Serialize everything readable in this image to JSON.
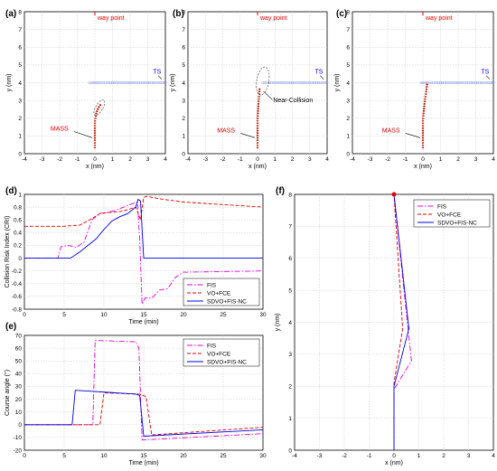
{
  "colors": {
    "fis": "#e000e0",
    "vo_fce": "#e00000",
    "sdvo": "#0000e0",
    "ts": "#0000e0",
    "mass": "#e00000",
    "waypoint": "#e00000",
    "grid": "#c8c8c8",
    "ts_track": "#9aa8e8"
  },
  "chart_data": [
    {
      "panel": "(a)",
      "type": "scatter",
      "xlabel": "x (nm)",
      "ylabel": "y (nm)",
      "xlim": [
        -4,
        4
      ],
      "ylim": [
        0,
        8
      ],
      "xticks": [
        "-4",
        "-3",
        "-2",
        "-1",
        "0",
        "1",
        "2",
        "3",
        "4"
      ],
      "yticks": [
        "0",
        "1",
        "2",
        "3",
        "4",
        "5",
        "6",
        "7",
        "8"
      ],
      "grid": true,
      "annotations": {
        "waypoint": "way point",
        "ts": "TS",
        "mass": "MASS"
      },
      "ts_track": {
        "x_from": 4.0,
        "x_to": -0.3,
        "y": 4.0
      },
      "mass_track": {
        "x": [
          0,
          0,
          0.08,
          0.2,
          0.35
        ],
        "y": [
          0.3,
          1.8,
          2.3,
          2.6,
          2.8
        ]
      },
      "ellipse": {
        "cx": 0.25,
        "cy": 2.6,
        "rx": 0.2,
        "ry": 0.5,
        "angle": 30
      },
      "labels_at": {
        "waypoint": [
          0,
          8
        ],
        "ts": [
          3.3,
          4.5
        ],
        "mass": [
          -1.8,
          1.3
        ]
      }
    },
    {
      "panel": "(b)",
      "type": "scatter",
      "xlabel": "x (nm)",
      "ylabel": "y (nm)",
      "xlim": [
        -4,
        4
      ],
      "ylim": [
        0,
        8
      ],
      "xticks": [
        "-4",
        "-3",
        "-2",
        "-1",
        "0",
        "1",
        "2",
        "3",
        "4"
      ],
      "yticks": [
        "0",
        "1",
        "2",
        "3",
        "4",
        "5",
        "6",
        "7",
        "8"
      ],
      "grid": true,
      "annotations": {
        "waypoint": "way point",
        "ts": "TS",
        "mass": "MASS",
        "near": "Near-Collision"
      },
      "ts_track": {
        "x_from": 4.0,
        "x_to": 0.3,
        "y": 4.0
      },
      "mass_track": {
        "x": [
          0,
          0,
          0.05,
          0.1,
          0.12
        ],
        "y": [
          0.3,
          2.0,
          2.8,
          3.4,
          3.7
        ]
      },
      "ellipse": {
        "cx": 0.3,
        "cy": 4.1,
        "rx": 0.35,
        "ry": 0.8,
        "angle": 10
      },
      "labels_at": {
        "waypoint": [
          0,
          8
        ],
        "ts": [
          3.3,
          4.5
        ],
        "mass": [
          -1.6,
          1.2
        ],
        "near": [
          0.9,
          2.9
        ]
      }
    },
    {
      "panel": "(c)",
      "type": "scatter",
      "xlabel": "x (nm)",
      "ylabel": "y (nm)",
      "xlim": [
        -4,
        4
      ],
      "ylim": [
        0,
        8
      ],
      "xticks": [
        "-4",
        "-3",
        "-2",
        "-1",
        "0",
        "1",
        "2",
        "3",
        "4"
      ],
      "yticks": [
        "0",
        "1",
        "2",
        "3",
        "4",
        "5",
        "6",
        "7",
        "8"
      ],
      "grid": true,
      "annotations": {
        "waypoint": "way point",
        "ts": "TS",
        "mass": "MASS"
      },
      "ts_track": {
        "x_from": 4.0,
        "x_to": -0.1,
        "y": 4.0
      },
      "mass_track": {
        "x": [
          0,
          0,
          0.1,
          0.2,
          0.25
        ],
        "y": [
          0.3,
          1.9,
          2.9,
          3.6,
          4.0
        ]
      },
      "ellipse": null,
      "labels_at": {
        "waypoint": [
          0,
          8
        ],
        "ts": [
          3.3,
          4.5
        ],
        "mass": [
          -1.6,
          1.2
        ]
      }
    },
    {
      "panel": "(d)",
      "type": "line",
      "xlabel": "Time (min)",
      "ylabel": "Collision Risk Index (CRI)",
      "xlim": [
        0,
        30
      ],
      "ylim": [
        -0.8,
        1
      ],
      "xticks": [
        "0",
        "5",
        "10",
        "15",
        "20",
        "25",
        "30"
      ],
      "yticks": [
        "-0.8",
        "-0.6",
        "-0.4",
        "-0.2",
        "0",
        "0.2",
        "0.4",
        "0.6",
        "0.8",
        "1"
      ],
      "grid": true,
      "legend": "bottom-right",
      "series": [
        {
          "name": "FIS",
          "style": "dashdot",
          "color_key": "fis",
          "x": [
            0,
            4.2,
            4.6,
            5.5,
            6.5,
            7.5,
            8.5,
            9.5,
            10.5,
            11.5,
            12.5,
            13.5,
            14.2,
            14.5,
            14.8,
            15.2,
            16,
            17,
            18,
            19,
            20,
            30
          ],
          "y": [
            0,
            0,
            0.18,
            0.2,
            0.17,
            0.25,
            0.6,
            0.7,
            0.72,
            0.75,
            0.8,
            0.85,
            0.88,
            0.3,
            -0.72,
            -0.62,
            -0.63,
            -0.5,
            -0.48,
            -0.3,
            -0.22,
            -0.2
          ]
        },
        {
          "name": "VO+FCE",
          "style": "dashed",
          "color_key": "vo_fce",
          "x": [
            0,
            5,
            7,
            8.5,
            9.5,
            11,
            12,
            13,
            14,
            14.6,
            15,
            15.4,
            17,
            20,
            25,
            30
          ],
          "y": [
            0.5,
            0.5,
            0.52,
            0.62,
            0.7,
            0.72,
            0.73,
            0.76,
            0.8,
            0.6,
            0.95,
            0.97,
            0.93,
            0.88,
            0.84,
            0.8
          ]
        },
        {
          "name": "SDVO+FIS-NC",
          "style": "solid",
          "color_key": "sdvo",
          "x": [
            0,
            5.8,
            7,
            8,
            9,
            10,
            11,
            12,
            13,
            14,
            14.3,
            14.6,
            15,
            30
          ],
          "y": [
            0,
            0,
            0.1,
            0.2,
            0.3,
            0.45,
            0.58,
            0.65,
            0.7,
            0.8,
            0.92,
            0.9,
            0,
            0
          ]
        }
      ]
    },
    {
      "panel": "(e)",
      "type": "line",
      "xlabel": "Time (min)",
      "ylabel": "Course angle (°)",
      "xlim": [
        0,
        30
      ],
      "ylim": [
        -20,
        70
      ],
      "xticks": [
        "0",
        "5",
        "10",
        "15",
        "20",
        "25",
        "30"
      ],
      "yticks": [
        "-20",
        "-10",
        "0",
        "10",
        "20",
        "30",
        "40",
        "50",
        "60",
        "70"
      ],
      "grid": true,
      "legend": "top-right",
      "series": [
        {
          "name": "FIS",
          "style": "dashdot",
          "color_key": "fis",
          "x": [
            0,
            8.6,
            8.9,
            14,
            14.4,
            14.8,
            30
          ],
          "y": [
            0,
            0,
            66,
            65,
            60,
            -12,
            -7
          ]
        },
        {
          "name": "VO+FCE",
          "style": "dashed",
          "color_key": "vo_fce",
          "x": [
            0,
            9.5,
            10,
            14.5,
            15.3,
            16,
            30
          ],
          "y": [
            0,
            0,
            25,
            24,
            22,
            -8,
            -2
          ]
        },
        {
          "name": "SDVO+FIS-NC",
          "style": "solid",
          "color_key": "sdvo",
          "x": [
            0,
            6,
            6.4,
            14,
            14.5,
            15,
            30
          ],
          "y": [
            0,
            0,
            27,
            24,
            23,
            -9,
            -4
          ]
        }
      ]
    },
    {
      "panel": "(f)",
      "type": "line",
      "xlabel": "x (nm)",
      "ylabel": "y (nm)",
      "xlim": [
        -4,
        4
      ],
      "ylim": [
        0,
        8
      ],
      "xticks": [
        "-4",
        "-3",
        "-2",
        "-1",
        "0",
        "1",
        "2",
        "3",
        "4"
      ],
      "yticks": [
        "0",
        "1",
        "2",
        "3",
        "4",
        "5",
        "6",
        "7",
        "8"
      ],
      "grid": true,
      "legend": "top-right",
      "endpoint": [
        0,
        8
      ],
      "series": [
        {
          "name": "FIS",
          "style": "dashdot",
          "color_key": "fis",
          "x": [
            0,
            0,
            0.7,
            0
          ],
          "y": [
            0,
            1.9,
            2.8,
            8
          ]
        },
        {
          "name": "VO+FCE",
          "style": "dashed",
          "color_key": "vo_fce",
          "x": [
            0,
            0,
            0.35,
            0
          ],
          "y": [
            0,
            2.1,
            3.8,
            8
          ]
        },
        {
          "name": "SDVO+FIS-NC",
          "style": "solid",
          "color_key": "sdvo",
          "x": [
            0,
            0,
            0.6,
            0
          ],
          "y": [
            0,
            2.0,
            3.8,
            8
          ]
        }
      ]
    }
  ]
}
